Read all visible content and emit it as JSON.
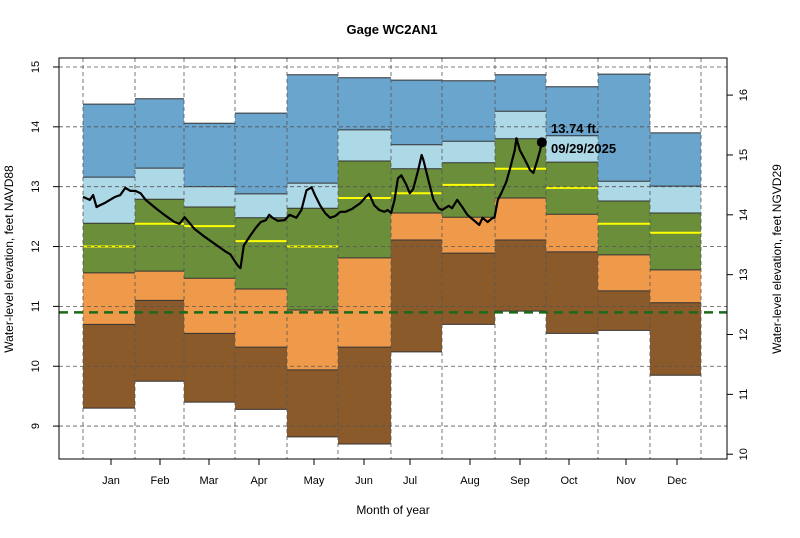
{
  "chart_data": {
    "type": "area",
    "title": "Gage WC2AN1",
    "xlabel": "Month of year",
    "ylabel": "Water-level elevation, feet NAVD88",
    "ylabel_right": "Water-level elevation, feet NGVD29",
    "ylim": [
      8.45,
      15.15
    ],
    "right_axis_offset": 1.47,
    "yticks": [
      9,
      10,
      11,
      12,
      13,
      14,
      15
    ],
    "yticks_right": [
      10,
      11,
      12,
      13,
      14,
      15,
      16
    ],
    "grid": true,
    "categories": [
      "Jan",
      "Feb",
      "Mar",
      "Apr",
      "May",
      "Jun",
      "Jul",
      "Aug",
      "Sep",
      "Oct",
      "Nov",
      "Dec"
    ],
    "monthly_stats": {
      "max": [
        14.38,
        14.47,
        14.06,
        14.23,
        14.87,
        14.82,
        14.78,
        14.77,
        14.87,
        14.67,
        14.88,
        13.9
      ],
      "p90": [
        13.16,
        13.31,
        13.0,
        12.88,
        13.06,
        13.95,
        13.7,
        13.76,
        14.26,
        13.85,
        13.09,
        13.01
      ],
      "p75": [
        12.39,
        12.79,
        12.66,
        12.48,
        12.64,
        13.43,
        13.3,
        13.4,
        13.8,
        13.41,
        12.76,
        12.56
      ],
      "median": [
        12.0,
        12.38,
        12.34,
        12.09,
        12.0,
        12.81,
        12.89,
        13.03,
        13.3,
        12.98,
        12.38,
        12.23
      ],
      "p25": [
        11.56,
        11.59,
        11.47,
        11.29,
        10.94,
        11.81,
        12.56,
        12.49,
        12.81,
        12.54,
        11.86,
        11.61
      ],
      "p10": [
        10.7,
        11.1,
        10.55,
        10.32,
        9.94,
        10.32,
        12.11,
        11.89,
        12.11,
        11.91,
        11.26,
        11.06
      ],
      "min": [
        9.3,
        9.75,
        9.4,
        9.28,
        8.82,
        8.7,
        10.24,
        10.7,
        10.92,
        10.55,
        10.6,
        9.85
      ]
    },
    "reference_line": 10.9,
    "colors": {
      "max_band": "#6aa5cd",
      "p90_band": "#add8e6",
      "p75_band": "#6b8e3a",
      "p25_band": "#ef9a4a",
      "p10_band": "#8b5a2b",
      "median": "#ffff00",
      "reference": "#1a6b1a",
      "series": "#000000"
    },
    "series": [
      {
        "points": [
          [
            "2025-01-01",
            12.83
          ],
          [
            "2025-01-05",
            12.78
          ],
          [
            "2025-01-07",
            12.86
          ],
          [
            "2025-01-09",
            12.66
          ],
          [
            "2025-01-11",
            12.69
          ],
          [
            "2025-01-14",
            12.73
          ],
          [
            "2025-01-17",
            12.78
          ],
          [
            "2025-01-20",
            12.83
          ],
          [
            "2025-01-23",
            12.86
          ],
          [
            "2025-01-26",
            12.98
          ],
          [
            "2025-01-29",
            12.93
          ],
          [
            "2025-02-01",
            12.93
          ],
          [
            "2025-02-04",
            12.89
          ],
          [
            "2025-02-07",
            12.78
          ],
          [
            "2025-02-13",
            12.64
          ],
          [
            "2025-02-18",
            12.53
          ],
          [
            "2025-02-24",
            12.41
          ],
          [
            "2025-02-27",
            12.38
          ],
          [
            "2025-03-02",
            12.49
          ],
          [
            "2025-03-05",
            12.39
          ],
          [
            "2025-03-08",
            12.29
          ],
          [
            "2025-03-14",
            12.16
          ],
          [
            "2025-03-20",
            12.04
          ],
          [
            "2025-03-26",
            11.92
          ],
          [
            "2025-03-29",
            11.87
          ],
          [
            "2025-04-01",
            11.74
          ],
          [
            "2025-04-03",
            11.66
          ],
          [
            "2025-04-04",
            11.64
          ],
          [
            "2025-04-06",
            12.02
          ],
          [
            "2025-04-10",
            12.19
          ],
          [
            "2025-04-13",
            12.31
          ],
          [
            "2025-04-16",
            12.41
          ],
          [
            "2025-04-19",
            12.44
          ],
          [
            "2025-04-21",
            12.53
          ],
          [
            "2025-04-23",
            12.48
          ],
          [
            "2025-04-26",
            12.43
          ],
          [
            "2025-04-30",
            12.44
          ],
          [
            "2025-05-03",
            12.53
          ],
          [
            "2025-05-07",
            12.48
          ],
          [
            "2025-05-10",
            12.61
          ],
          [
            "2025-05-13",
            12.94
          ],
          [
            "2025-05-16",
            12.99
          ],
          [
            "2025-05-18",
            12.86
          ],
          [
            "2025-05-21",
            12.69
          ],
          [
            "2025-05-24",
            12.56
          ],
          [
            "2025-05-27",
            12.48
          ],
          [
            "2025-05-30",
            12.51
          ],
          [
            "2025-06-02",
            12.58
          ],
          [
            "2025-06-05",
            12.58
          ],
          [
            "2025-06-09",
            12.63
          ],
          [
            "2025-06-14",
            12.73
          ],
          [
            "2025-06-17",
            12.83
          ],
          [
            "2025-06-19",
            12.88
          ],
          [
            "2025-06-22",
            12.69
          ],
          [
            "2025-06-25",
            12.61
          ],
          [
            "2025-06-28",
            12.58
          ],
          [
            "2025-06-30",
            12.61
          ],
          [
            "2025-07-02",
            12.56
          ],
          [
            "2025-07-04",
            12.78
          ],
          [
            "2025-07-06",
            13.14
          ],
          [
            "2025-07-08",
            13.19
          ],
          [
            "2025-07-11",
            13.03
          ],
          [
            "2025-07-13",
            12.89
          ],
          [
            "2025-07-15",
            12.96
          ],
          [
            "2025-07-18",
            13.28
          ],
          [
            "2025-07-20",
            13.53
          ],
          [
            "2025-07-21",
            13.45
          ],
          [
            "2025-07-24",
            13.11
          ],
          [
            "2025-07-27",
            12.78
          ],
          [
            "2025-07-30",
            12.64
          ],
          [
            "2025-08-01",
            12.61
          ],
          [
            "2025-08-05",
            12.68
          ],
          [
            "2025-08-07",
            12.64
          ],
          [
            "2025-08-10",
            12.78
          ],
          [
            "2025-08-13",
            12.66
          ],
          [
            "2025-08-16",
            12.53
          ],
          [
            "2025-08-21",
            12.41
          ],
          [
            "2025-08-23",
            12.36
          ],
          [
            "2025-08-25",
            12.48
          ],
          [
            "2025-08-28",
            12.41
          ],
          [
            "2025-08-31",
            12.48
          ],
          [
            "2025-09-01",
            12.48
          ],
          [
            "2025-09-03",
            12.78
          ],
          [
            "2025-09-05",
            12.89
          ],
          [
            "2025-09-08",
            13.08
          ],
          [
            "2025-09-10",
            13.28
          ],
          [
            "2025-09-13",
            13.61
          ],
          [
            "2025-09-14",
            13.81
          ],
          [
            "2025-09-16",
            13.61
          ],
          [
            "2025-09-19",
            13.45
          ],
          [
            "2025-09-22",
            13.28
          ],
          [
            "2025-09-24",
            13.23
          ],
          [
            "2025-09-26",
            13.41
          ],
          [
            "2025-09-28",
            13.61
          ],
          [
            "2025-09-29",
            13.74
          ]
        ]
      }
    ],
    "annotation": {
      "date": "2025-09-29",
      "value": 13.74,
      "value_label": "13.74 ft.",
      "date_label": "09/29/2025"
    }
  }
}
